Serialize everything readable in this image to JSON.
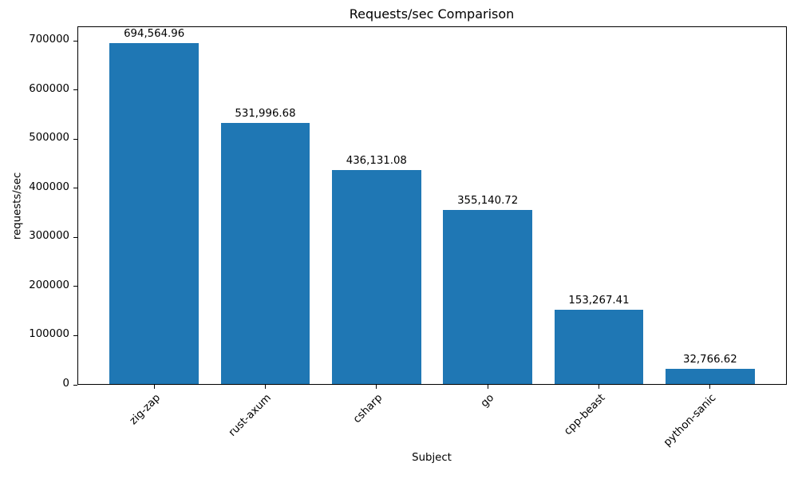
{
  "chart_data": {
    "type": "bar",
    "title": "Requests/sec Comparison",
    "xlabel": "Subject",
    "ylabel": "requests/sec",
    "categories": [
      "zig-zap",
      "rust-axum",
      "csharp",
      "go",
      "cpp-beast",
      "python-sanic"
    ],
    "values": [
      694564.96,
      531996.68,
      436131.08,
      355140.72,
      153267.41,
      32766.62
    ],
    "value_labels": [
      "694,564.96",
      "531,996.68",
      "436,131.08",
      "355,140.72",
      "153,267.41",
      "32,766.62"
    ],
    "y_ticks": [
      0,
      100000,
      200000,
      300000,
      400000,
      500000,
      600000,
      700000
    ],
    "y_tick_labels": [
      "0",
      "100000",
      "200000",
      "300000",
      "400000",
      "500000",
      "600000",
      "700000"
    ],
    "ylim": [
      0,
      729293
    ],
    "bar_color": "#1f77b4",
    "x_tick_rotation": 45,
    "grid": false,
    "legend": null
  }
}
